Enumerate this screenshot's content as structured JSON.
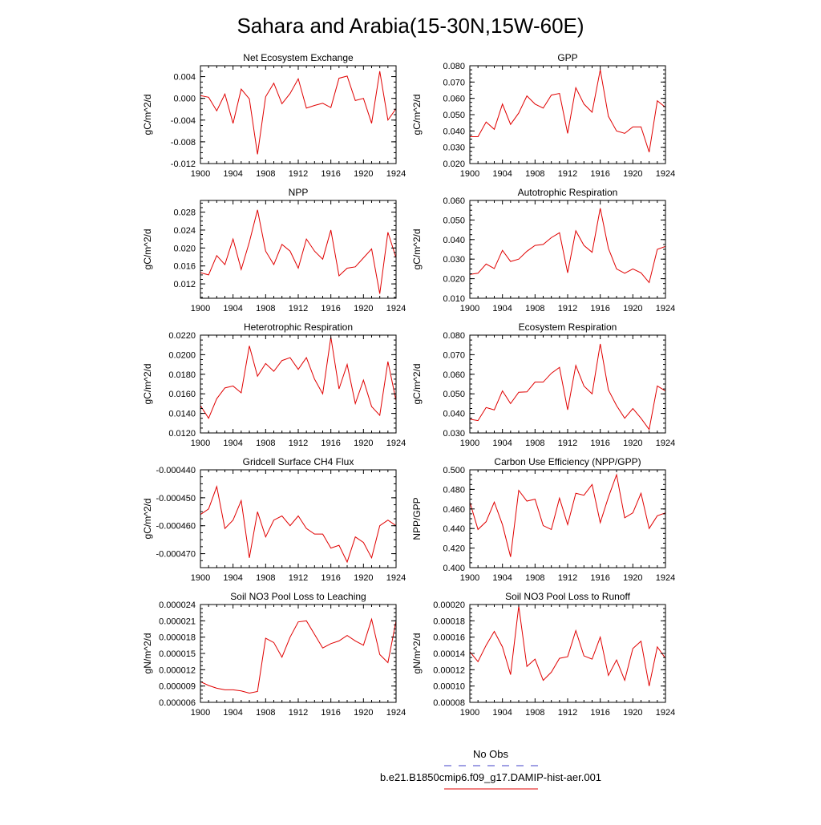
{
  "title": "Sahara and Arabia(15-30N,15W-60E)",
  "legend": {
    "entries": [
      {
        "label": "No Obs",
        "color": "#4040c8",
        "style": "dashed"
      },
      {
        "label": "b.e21.B1850cmip6.f09_g17.DAMIP-hist-aer.001",
        "color": "#e00000",
        "style": "solid"
      }
    ]
  },
  "chart_data": [
    {
      "type": "line",
      "title": "Net Ecosystem Exchange",
      "ylabel": "gC/m^2/d",
      "xlim": [
        1900,
        1924
      ],
      "ylim": [
        -0.012,
        0.006
      ],
      "xticks": [
        "1900",
        "1904",
        "1908",
        "1912",
        "1916",
        "1920",
        "1924"
      ],
      "yticks": [
        -0.012,
        -0.008,
        -0.004,
        0.0,
        0.004
      ],
      "yticklabels": [
        "-0.012",
        "-0.008",
        "-0.004",
        "0.000",
        "0.004"
      ],
      "series": [
        {
          "color": "#e00000",
          "x": [
            1900,
            1901,
            1902,
            1903,
            1904,
            1905,
            1906,
            1907,
            1908,
            1909,
            1910,
            1911,
            1912,
            1913,
            1914,
            1915,
            1916,
            1917,
            1918,
            1919,
            1920,
            1921,
            1922,
            1923,
            1924
          ],
          "values": [
            0.0005,
            0.0002,
            -0.0023,
            0.0008,
            -0.0046,
            0.0017,
            -0.0001,
            -0.0103,
            0.0003,
            0.0028,
            -0.001,
            0.0009,
            0.0036,
            -0.0018,
            -0.0013,
            -0.0009,
            -0.0017,
            0.0037,
            0.0041,
            -0.0004,
            0.0,
            -0.0046,
            0.005,
            -0.004,
            -0.0019
          ]
        }
      ]
    },
    {
      "type": "line",
      "title": "GPP",
      "ylabel": "gC/m^2/d",
      "xlim": [
        1900,
        1924
      ],
      "ylim": [
        0.02,
        0.08
      ],
      "xticks": [
        "1900",
        "1904",
        "1908",
        "1912",
        "1916",
        "1920",
        "1924"
      ],
      "yticks": [
        0.02,
        0.03,
        0.04,
        0.05,
        0.06,
        0.07,
        0.08
      ],
      "yticklabels": [
        "0.020",
        "0.030",
        "0.040",
        "0.050",
        "0.060",
        "0.070",
        "0.080"
      ],
      "series": [
        {
          "color": "#e00000",
          "x": [
            1900,
            1901,
            1902,
            1903,
            1904,
            1905,
            1906,
            1907,
            1908,
            1909,
            1910,
            1911,
            1912,
            1913,
            1914,
            1915,
            1916,
            1917,
            1918,
            1919,
            1920,
            1921,
            1922,
            1923,
            1924
          ],
          "values": [
            0.0365,
            0.0365,
            0.0455,
            0.041,
            0.0565,
            0.044,
            0.051,
            0.0615,
            0.0565,
            0.054,
            0.062,
            0.063,
            0.0385,
            0.0665,
            0.0565,
            0.0515,
            0.0775,
            0.049,
            0.04,
            0.0385,
            0.0425,
            0.0425,
            0.027,
            0.0585,
            0.0545
          ]
        }
      ]
    },
    {
      "type": "line",
      "title": "NPP",
      "ylabel": "gC/m^2/d",
      "xlim": [
        1900,
        1924
      ],
      "ylim": [
        0.0088,
        0.0306
      ],
      "xticks": [
        "1900",
        "1904",
        "1908",
        "1912",
        "1916",
        "1920",
        "1924"
      ],
      "yticks": [
        0.012,
        0.016,
        0.02,
        0.024,
        0.028
      ],
      "yticklabels": [
        "0.012",
        "0.016",
        "0.020",
        "0.024",
        "0.028"
      ],
      "series": [
        {
          "color": "#e00000",
          "x": [
            1900,
            1901,
            1902,
            1903,
            1904,
            1905,
            1906,
            1907,
            1908,
            1909,
            1910,
            1911,
            1912,
            1913,
            1914,
            1915,
            1916,
            1917,
            1918,
            1919,
            1920,
            1921,
            1922,
            1923,
            1924
          ],
          "values": [
            0.0145,
            0.014,
            0.0183,
            0.0163,
            0.022,
            0.0152,
            0.0213,
            0.0285,
            0.0193,
            0.0163,
            0.0208,
            0.0193,
            0.0155,
            0.022,
            0.0193,
            0.0175,
            0.024,
            0.0138,
            0.0155,
            0.0158,
            0.0178,
            0.0198,
            0.0098,
            0.0235,
            0.0178
          ]
        }
      ]
    },
    {
      "type": "line",
      "title": "Autotrophic Respiration",
      "ylabel": "gC/m^2/d",
      "xlim": [
        1900,
        1924
      ],
      "ylim": [
        0.01,
        0.06
      ],
      "xticks": [
        "1900",
        "1904",
        "1908",
        "1912",
        "1916",
        "1920",
        "1924"
      ],
      "yticks": [
        0.01,
        0.02,
        0.03,
        0.04,
        0.05,
        0.06
      ],
      "yticklabels": [
        "0.010",
        "0.020",
        "0.030",
        "0.040",
        "0.050",
        "0.060"
      ],
      "series": [
        {
          "color": "#e00000",
          "x": [
            1900,
            1901,
            1902,
            1903,
            1904,
            1905,
            1906,
            1907,
            1908,
            1909,
            1910,
            1911,
            1912,
            1913,
            1914,
            1915,
            1916,
            1917,
            1918,
            1919,
            1920,
            1921,
            1922,
            1923,
            1924
          ],
          "values": [
            0.0222,
            0.0228,
            0.0275,
            0.0252,
            0.0345,
            0.0288,
            0.03,
            0.034,
            0.037,
            0.0375,
            0.041,
            0.0435,
            0.023,
            0.0445,
            0.037,
            0.0335,
            0.056,
            0.0355,
            0.025,
            0.0228,
            0.025,
            0.023,
            0.018,
            0.035,
            0.0365
          ]
        }
      ]
    },
    {
      "type": "line",
      "title": "Heterotrophic Respiration",
      "ylabel": "gC/m^2/d",
      "xlim": [
        1900,
        1924
      ],
      "ylim": [
        0.012,
        0.022
      ],
      "xticks": [
        "1900",
        "1904",
        "1908",
        "1912",
        "1916",
        "1920",
        "1924"
      ],
      "yticks": [
        0.012,
        0.014,
        0.016,
        0.018,
        0.02,
        0.022
      ],
      "yticklabels": [
        "0.0120",
        "0.0140",
        "0.0160",
        "0.0180",
        "0.0200",
        "0.0220"
      ],
      "series": [
        {
          "color": "#e00000",
          "x": [
            1900,
            1901,
            1902,
            1903,
            1904,
            1905,
            1906,
            1907,
            1908,
            1909,
            1910,
            1911,
            1912,
            1913,
            1914,
            1915,
            1916,
            1917,
            1918,
            1919,
            1920,
            1921,
            1922,
            1923,
            1924
          ],
          "values": [
            0.0148,
            0.0135,
            0.0155,
            0.0166,
            0.0168,
            0.0161,
            0.0209,
            0.0178,
            0.0191,
            0.0183,
            0.0194,
            0.0197,
            0.0185,
            0.0197,
            0.0175,
            0.016,
            0.0218,
            0.0165,
            0.019,
            0.015,
            0.0174,
            0.0147,
            0.0138,
            0.0193,
            0.0153
          ]
        }
      ]
    },
    {
      "type": "line",
      "title": "Ecosystem Respiration",
      "ylabel": "gC/m^2/d",
      "xlim": [
        1900,
        1924
      ],
      "ylim": [
        0.03,
        0.08
      ],
      "xticks": [
        "1900",
        "1904",
        "1908",
        "1912",
        "1916",
        "1920",
        "1924"
      ],
      "yticks": [
        0.03,
        0.04,
        0.05,
        0.06,
        0.07,
        0.08
      ],
      "yticklabels": [
        "0.030",
        "0.040",
        "0.050",
        "0.060",
        "0.070",
        "0.080"
      ],
      "series": [
        {
          "color": "#e00000",
          "x": [
            1900,
            1901,
            1902,
            1903,
            1904,
            1905,
            1906,
            1907,
            1908,
            1909,
            1910,
            1911,
            1912,
            1913,
            1914,
            1915,
            1916,
            1917,
            1918,
            1919,
            1920,
            1921,
            1922,
            1923,
            1924
          ],
          "values": [
            0.037,
            0.0363,
            0.043,
            0.0418,
            0.0515,
            0.045,
            0.0508,
            0.051,
            0.056,
            0.056,
            0.0605,
            0.0635,
            0.0418,
            0.0645,
            0.054,
            0.05,
            0.0755,
            0.052,
            0.044,
            0.0375,
            0.0425,
            0.0375,
            0.0318,
            0.054,
            0.0515
          ]
        }
      ]
    },
    {
      "type": "line",
      "title": "Gridcell Surface CH4 Flux",
      "ylabel": "gC/m^2/d",
      "xlim": [
        1900,
        1924
      ],
      "ylim": [
        -0.000475,
        -0.00044
      ],
      "xticks": [
        "1900",
        "1904",
        "1908",
        "1912",
        "1916",
        "1920",
        "1924"
      ],
      "yticks": [
        -0.00047,
        -0.00046,
        -0.00045,
        -0.00044
      ],
      "yticklabels": [
        "-0.000470",
        "-0.000460",
        "-0.000450",
        "-0.000440"
      ],
      "series": [
        {
          "color": "#e00000",
          "x": [
            1900,
            1901,
            1902,
            1903,
            1904,
            1905,
            1906,
            1907,
            1908,
            1909,
            1910,
            1911,
            1912,
            1913,
            1914,
            1915,
            1916,
            1917,
            1918,
            1919,
            1920,
            1921,
            1922,
            1923,
            1924
          ],
          "values": [
            -0.000456,
            -0.000454,
            -0.000446,
            -0.000461,
            -0.000458,
            -0.000451,
            -0.0004715,
            -0.000455,
            -0.000464,
            -0.000458,
            -0.0004565,
            -0.00046,
            -0.0004565,
            -0.000461,
            -0.000463,
            -0.000463,
            -0.000468,
            -0.000467,
            -0.000473,
            -0.000464,
            -0.000466,
            -0.0004715,
            -0.00046,
            -0.000458,
            -0.00046
          ]
        }
      ]
    },
    {
      "type": "line",
      "title": "Carbon Use Efficiency (NPP/GPP)",
      "ylabel": "NPP/GPP",
      "xlim": [
        1900,
        1924
      ],
      "ylim": [
        0.4,
        0.5
      ],
      "xticks": [
        "1900",
        "1904",
        "1908",
        "1912",
        "1916",
        "1920",
        "1924"
      ],
      "yticks": [
        0.4,
        0.42,
        0.44,
        0.46,
        0.48,
        0.5
      ],
      "yticklabels": [
        "0.400",
        "0.420",
        "0.440",
        "0.460",
        "0.480",
        "0.500"
      ],
      "series": [
        {
          "color": "#e00000",
          "x": [
            1900,
            1901,
            1902,
            1903,
            1904,
            1905,
            1906,
            1907,
            1908,
            1909,
            1910,
            1911,
            1912,
            1913,
            1914,
            1915,
            1916,
            1917,
            1918,
            1919,
            1920,
            1921,
            1922,
            1923,
            1924
          ],
          "values": [
            0.467,
            0.439,
            0.447,
            0.467,
            0.444,
            0.411,
            0.479,
            0.468,
            0.47,
            0.443,
            0.439,
            0.471,
            0.444,
            0.476,
            0.474,
            0.485,
            0.446,
            0.472,
            0.495,
            0.451,
            0.456,
            0.476,
            0.44,
            0.453,
            0.456
          ]
        }
      ]
    },
    {
      "type": "line",
      "title": "Soil NO3 Pool Loss to Leaching",
      "ylabel": "gN/m^2/d",
      "xlim": [
        1900,
        1924
      ],
      "ylim": [
        6e-06,
        2.4e-05
      ],
      "xticks": [
        "1900",
        "1904",
        "1908",
        "1912",
        "1916",
        "1920",
        "1924"
      ],
      "yticks": [
        6e-06,
        9e-06,
        1.2e-05,
        1.5e-05,
        1.8e-05,
        2.1e-05,
        2.4e-05
      ],
      "yticklabels": [
        "0.000006",
        "0.000009",
        "0.000012",
        "0.000015",
        "0.000018",
        "0.000021",
        "0.000024"
      ],
      "series": [
        {
          "color": "#e00000",
          "x": [
            1900,
            1901,
            1902,
            1903,
            1904,
            1905,
            1906,
            1907,
            1908,
            1909,
            1910,
            1911,
            1912,
            1913,
            1914,
            1915,
            1916,
            1917,
            1918,
            1919,
            1920,
            1921,
            1922,
            1923,
            1924
          ],
          "values": [
            9.8e-06,
            9.1e-06,
            8.6e-06,
            8.3e-06,
            8.3e-06,
            8.1e-06,
            7.7e-06,
            8e-06,
            1.78e-05,
            1.7e-05,
            1.43e-05,
            1.8e-05,
            2.08e-05,
            2.1e-05,
            1.85e-05,
            1.6e-05,
            1.68e-05,
            1.73e-05,
            1.83e-05,
            1.73e-05,
            1.65e-05,
            2.13e-05,
            1.48e-05,
            1.33e-05,
            2.1e-05
          ]
        }
      ]
    },
    {
      "type": "line",
      "title": "Soil NO3 Pool Loss to Runoff",
      "ylabel": "gN/m^2/d",
      "xlim": [
        1900,
        1924
      ],
      "ylim": [
        8e-05,
        0.0002
      ],
      "xticks": [
        "1900",
        "1904",
        "1908",
        "1912",
        "1916",
        "1920",
        "1924"
      ],
      "yticks": [
        8e-05,
        0.0001,
        0.00012,
        0.00014,
        0.00016,
        0.00018,
        0.0002
      ],
      "yticklabels": [
        "0.00008",
        "0.00010",
        "0.00012",
        "0.00014",
        "0.00016",
        "0.00018",
        "0.00020"
      ],
      "series": [
        {
          "color": "#e00000",
          "x": [
            1900,
            1901,
            1902,
            1903,
            1904,
            1905,
            1906,
            1907,
            1908,
            1909,
            1910,
            1911,
            1912,
            1913,
            1914,
            1915,
            1916,
            1917,
            1918,
            1919,
            1920,
            1921,
            1922,
            1923,
            1924
          ],
          "values": [
            0.000142,
            0.00013,
            0.00015,
            0.000167,
            0.000148,
            0.000114,
            0.000198,
            0.000124,
            0.000133,
            0.000107,
            0.000117,
            0.000134,
            0.000136,
            0.000168,
            0.000137,
            0.000133,
            0.00016,
            0.000113,
            0.000132,
            0.000107,
            0.000146,
            0.000155,
            0.0001,
            0.000148,
            0.000134
          ]
        }
      ]
    }
  ]
}
